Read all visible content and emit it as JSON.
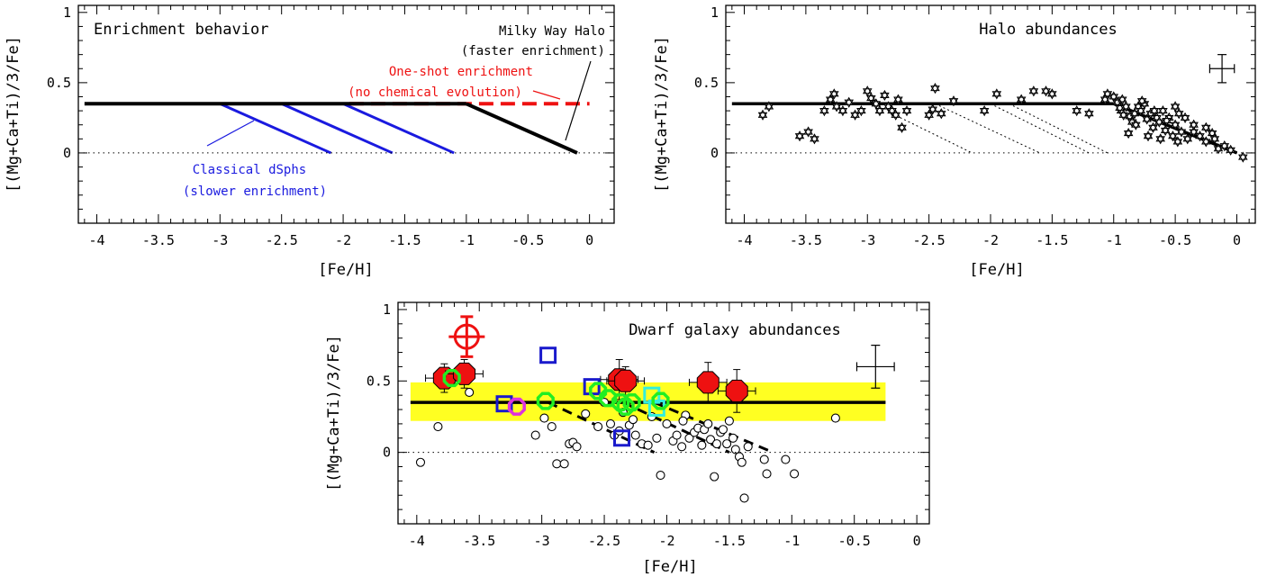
{
  "chart_data": [
    {
      "type": "line",
      "title": "Enrichment behavior",
      "xlabel": "[Fe/H]",
      "ylabel": "[(Mg+Ca+Ti)/3/Fe]",
      "xlim": [
        -4.15,
        0.2
      ],
      "ylim": [
        -0.5,
        1.05
      ],
      "xticks": [
        "-4",
        "-3.5",
        "-3",
        "-2.5",
        "-2",
        "-1.5",
        "-1",
        "-0.5",
        "0"
      ],
      "yticks": [
        "0",
        "0.5",
        "1"
      ],
      "annotations": {
        "halo_title": "Milky Way Halo",
        "halo_sub": "(faster enrichment)",
        "oneshot_title": "One-shot enrichment",
        "oneshot_sub": "(no chemical evolution)",
        "dsph_title": "Classical dSphs",
        "dsph_sub": "(slower enrichment)"
      },
      "colors": {
        "halo": "#000000",
        "oneshot": "#ee1111",
        "dsph": "#1a1adf"
      },
      "plateau": {
        "x": [
          -4.1,
          -1.0
        ],
        "y": 0.35
      },
      "oneshot": {
        "x": [
          -1.95,
          0.0
        ],
        "y": 0.35
      },
      "halo_decline": {
        "x": [
          -1.0,
          -0.1
        ],
        "y": [
          0.35,
          0.0
        ]
      },
      "dsph_lines": [
        {
          "x": [
            -3.0,
            -2.1
          ],
          "y": [
            0.35,
            0.0
          ]
        },
        {
          "x": [
            -2.5,
            -1.6
          ],
          "y": [
            0.35,
            0.0
          ]
        },
        {
          "x": [
            -2.0,
            -1.1
          ],
          "y": [
            0.35,
            0.0
          ]
        }
      ]
    },
    {
      "type": "scatter",
      "title": "Halo abundances",
      "xlabel": "[Fe/H]",
      "ylabel": "[(Mg+Ca+Ti)/3/Fe]",
      "xlim": [
        -4.15,
        0.15
      ],
      "ylim": [
        -0.5,
        1.05
      ],
      "xticks": [
        "-4",
        "-3.5",
        "-3",
        "-2.5",
        "-2",
        "-1.5",
        "-1",
        "-0.5",
        "0"
      ],
      "yticks": [
        "0",
        "0.5",
        "1"
      ],
      "error_bar": {
        "x": -0.12,
        "y": 0.6,
        "dx": 0.1,
        "dy": 0.1
      },
      "plateau": {
        "x": [
          -4.1,
          -1.0
        ],
        "y": 0.35
      },
      "decline": {
        "x": [
          -1.0,
          0.0
        ],
        "y": [
          0.35,
          0.0
        ]
      },
      "dotted_lines": [
        {
          "x": [
            -2.8,
            -2.15
          ],
          "y": [
            0.28,
            0.0
          ]
        },
        {
          "x": [
            -2.45,
            -1.6
          ],
          "y": [
            0.35,
            0.0
          ]
        },
        {
          "x": [
            -2.0,
            -1.2
          ],
          "y": [
            0.35,
            0.0
          ]
        },
        {
          "x": [
            -1.85,
            -1.05
          ],
          "y": [
            0.35,
            0.0
          ]
        }
      ],
      "stars": [
        [
          -3.85,
          0.27
        ],
        [
          -3.8,
          0.33
        ],
        [
          -3.55,
          0.12
        ],
        [
          -3.48,
          0.15
        ],
        [
          -3.43,
          0.1
        ],
        [
          -3.35,
          0.3
        ],
        [
          -3.3,
          0.38
        ],
        [
          -3.27,
          0.42
        ],
        [
          -3.25,
          0.33
        ],
        [
          -3.2,
          0.3
        ],
        [
          -3.15,
          0.36
        ],
        [
          -3.1,
          0.27
        ],
        [
          -3.05,
          0.3
        ],
        [
          -3.0,
          0.44
        ],
        [
          -2.97,
          0.39
        ],
        [
          -2.93,
          0.35
        ],
        [
          -2.9,
          0.3
        ],
        [
          -2.86,
          0.41
        ],
        [
          -2.83,
          0.33
        ],
        [
          -2.8,
          0.3
        ],
        [
          -2.77,
          0.27
        ],
        [
          -2.75,
          0.38
        ],
        [
          -2.72,
          0.18
        ],
        [
          -2.68,
          0.3
        ],
        [
          -2.5,
          0.27
        ],
        [
          -2.47,
          0.31
        ],
        [
          -2.45,
          0.46
        ],
        [
          -2.4,
          0.28
        ],
        [
          -2.3,
          0.37
        ],
        [
          -2.05,
          0.3
        ],
        [
          -1.95,
          0.42
        ],
        [
          -1.75,
          0.38
        ],
        [
          -1.65,
          0.44
        ],
        [
          -1.55,
          0.44
        ],
        [
          -1.5,
          0.42
        ],
        [
          -1.3,
          0.3
        ],
        [
          -1.2,
          0.28
        ],
        [
          -1.05,
          0.42
        ],
        [
          -1.0,
          0.4
        ],
        [
          -0.97,
          0.36
        ],
        [
          -0.94,
          0.3
        ],
        [
          -0.92,
          0.27
        ],
        [
          -0.9,
          0.33
        ],
        [
          -0.87,
          0.26
        ],
        [
          -0.85,
          0.22
        ],
        [
          -0.83,
          0.28
        ],
        [
          -0.8,
          0.33
        ],
        [
          -0.78,
          0.3
        ],
        [
          -0.75,
          0.35
        ],
        [
          -0.73,
          0.24
        ],
        [
          -0.7,
          0.28
        ],
        [
          -0.68,
          0.18
        ],
        [
          -0.65,
          0.25
        ],
        [
          -0.63,
          0.22
        ],
        [
          -0.6,
          0.3
        ],
        [
          -0.58,
          0.16
        ],
        [
          -0.55,
          0.25
        ],
        [
          -0.52,
          0.12
        ],
        [
          -0.5,
          0.2
        ],
        [
          -0.48,
          0.08
        ],
        [
          -0.45,
          0.15
        ],
        [
          -0.42,
          0.25
        ],
        [
          -0.4,
          0.1
        ],
        [
          -0.35,
          0.15
        ],
        [
          -0.3,
          0.12
        ],
        [
          -0.25,
          0.08
        ],
        [
          -0.2,
          0.14
        ],
        [
          -0.15,
          0.03
        ],
        [
          -0.1,
          0.05
        ],
        [
          -0.05,
          0.02
        ],
        [
          0.05,
          -0.03
        ],
        [
          -0.88,
          0.14
        ],
        [
          -0.72,
          0.12
        ],
        [
          -0.62,
          0.1
        ],
        [
          -0.93,
          0.38
        ],
        [
          -0.5,
          0.33
        ],
        [
          -0.35,
          0.2
        ],
        [
          -0.25,
          0.18
        ],
        [
          -0.18,
          0.1
        ],
        [
          -1.07,
          0.38
        ],
        [
          -0.95,
          0.32
        ],
        [
          -0.82,
          0.2
        ],
        [
          -0.77,
          0.37
        ],
        [
          -0.67,
          0.3
        ],
        [
          -0.57,
          0.23
        ],
        [
          -0.47,
          0.28
        ]
      ]
    },
    {
      "type": "scatter",
      "title": "Dwarf galaxy abundances",
      "xlabel": "[Fe/H]",
      "ylabel": "[(Mg+Ca+Ti)/3/Fe]",
      "xlim": [
        -4.15,
        0.1
      ],
      "ylim": [
        -0.5,
        1.05
      ],
      "xticks": [
        "-4",
        "-3.5",
        "-3",
        "-2.5",
        "-2",
        "-1.5",
        "-1",
        "-0.5",
        "0"
      ],
      "yticks": [
        "0",
        "0.5",
        "1"
      ],
      "band": {
        "x": [
          -4.05,
          -0.25
        ],
        "y": [
          0.22,
          0.49
        ],
        "color": "#ffff22"
      },
      "plateau": {
        "x": [
          -4.05,
          -0.25
        ],
        "y": 0.35
      },
      "dashed_lines": [
        {
          "x": [
            -2.95,
            -2.1
          ],
          "y": [
            0.35,
            0.0
          ]
        },
        {
          "x": [
            -2.35,
            -1.5
          ],
          "y": [
            0.35,
            0.0
          ]
        },
        {
          "x": [
            -2.1,
            -1.15
          ],
          "y": [
            0.35,
            0.0
          ]
        }
      ],
      "error_bar": {
        "x": -0.33,
        "y": 0.6,
        "dx": 0.15,
        "dy": 0.15
      },
      "ref_marker": {
        "x": -3.6,
        "y": 0.81,
        "dy": 0.14,
        "color": "#ee1111"
      },
      "colors": {
        "red": "#ee1111",
        "blue": "#1a1acc",
        "green": "#22ee22",
        "cyan": "#33eedd",
        "magenta": "#dd33dd"
      },
      "red_octagons": [
        [
          -3.78,
          0.52,
          0.1
        ],
        [
          -3.62,
          0.55,
          0.1
        ],
        [
          -2.38,
          0.51,
          0.14
        ],
        [
          -2.33,
          0.5,
          0.1
        ],
        [
          -1.67,
          0.49,
          0.14
        ],
        [
          -1.44,
          0.43,
          0.15
        ]
      ],
      "blue_squares": [
        [
          -3.3,
          0.34
        ],
        [
          -2.95,
          0.68
        ],
        [
          -2.6,
          0.46
        ],
        [
          -2.36,
          0.1
        ]
      ],
      "green_circles": [
        [
          -3.72,
          0.52
        ],
        [
          -2.97,
          0.36
        ],
        [
          -2.55,
          0.43
        ],
        [
          -2.47,
          0.38
        ],
        [
          -2.37,
          0.35
        ],
        [
          -2.33,
          0.32
        ],
        [
          -2.28,
          0.35
        ],
        [
          -2.05,
          0.36
        ]
      ],
      "cyan_squares": [
        [
          -2.12,
          0.4
        ],
        [
          -2.08,
          0.31
        ]
      ],
      "magenta_circles": [
        [
          -3.2,
          0.32
        ]
      ],
      "open_circles": [
        [
          -3.97,
          -0.07
        ],
        [
          -3.83,
          0.18
        ],
        [
          -3.58,
          0.42
        ],
        [
          -3.05,
          0.12
        ],
        [
          -2.98,
          0.24
        ],
        [
          -2.92,
          0.18
        ],
        [
          -2.88,
          -0.08
        ],
        [
          -2.82,
          -0.08
        ],
        [
          -2.78,
          0.06
        ],
        [
          -2.75,
          0.07
        ],
        [
          -2.72,
          0.04
        ],
        [
          -2.65,
          0.27
        ],
        [
          -2.55,
          0.18
        ],
        [
          -2.5,
          0.35
        ],
        [
          -2.45,
          0.2
        ],
        [
          -2.42,
          0.12
        ],
        [
          -2.38,
          0.15
        ],
        [
          -2.35,
          0.28
        ],
        [
          -2.3,
          0.19
        ],
        [
          -2.25,
          0.12
        ],
        [
          -2.2,
          0.06
        ],
        [
          -2.15,
          0.05
        ],
        [
          -2.12,
          0.25
        ],
        [
          -2.08,
          0.1
        ],
        [
          -2.05,
          -0.16
        ],
        [
          -2.0,
          0.2
        ],
        [
          -1.95,
          0.08
        ],
        [
          -1.92,
          0.12
        ],
        [
          -1.88,
          0.04
        ],
        [
          -1.85,
          0.26
        ],
        [
          -1.82,
          0.1
        ],
        [
          -1.78,
          0.14
        ],
        [
          -1.75,
          0.17
        ],
        [
          -1.72,
          0.05
        ],
        [
          -1.7,
          0.16
        ],
        [
          -1.67,
          0.2
        ],
        [
          -1.65,
          0.09
        ],
        [
          -1.62,
          -0.17
        ],
        [
          -1.6,
          0.06
        ],
        [
          -1.57,
          0.14
        ],
        [
          -1.55,
          0.16
        ],
        [
          -1.52,
          0.06
        ],
        [
          -1.5,
          0.22
        ],
        [
          -1.47,
          0.1
        ],
        [
          -1.45,
          0.02
        ],
        [
          -1.42,
          -0.03
        ],
        [
          -1.4,
          -0.07
        ],
        [
          -1.38,
          -0.32
        ],
        [
          -1.35,
          0.04
        ],
        [
          -1.22,
          -0.05
        ],
        [
          -1.2,
          -0.15
        ],
        [
          -1.05,
          -0.05
        ],
        [
          -0.98,
          -0.15
        ],
        [
          -0.65,
          0.24
        ],
        [
          -1.87,
          0.22
        ],
        [
          -2.27,
          0.23
        ]
      ]
    }
  ]
}
